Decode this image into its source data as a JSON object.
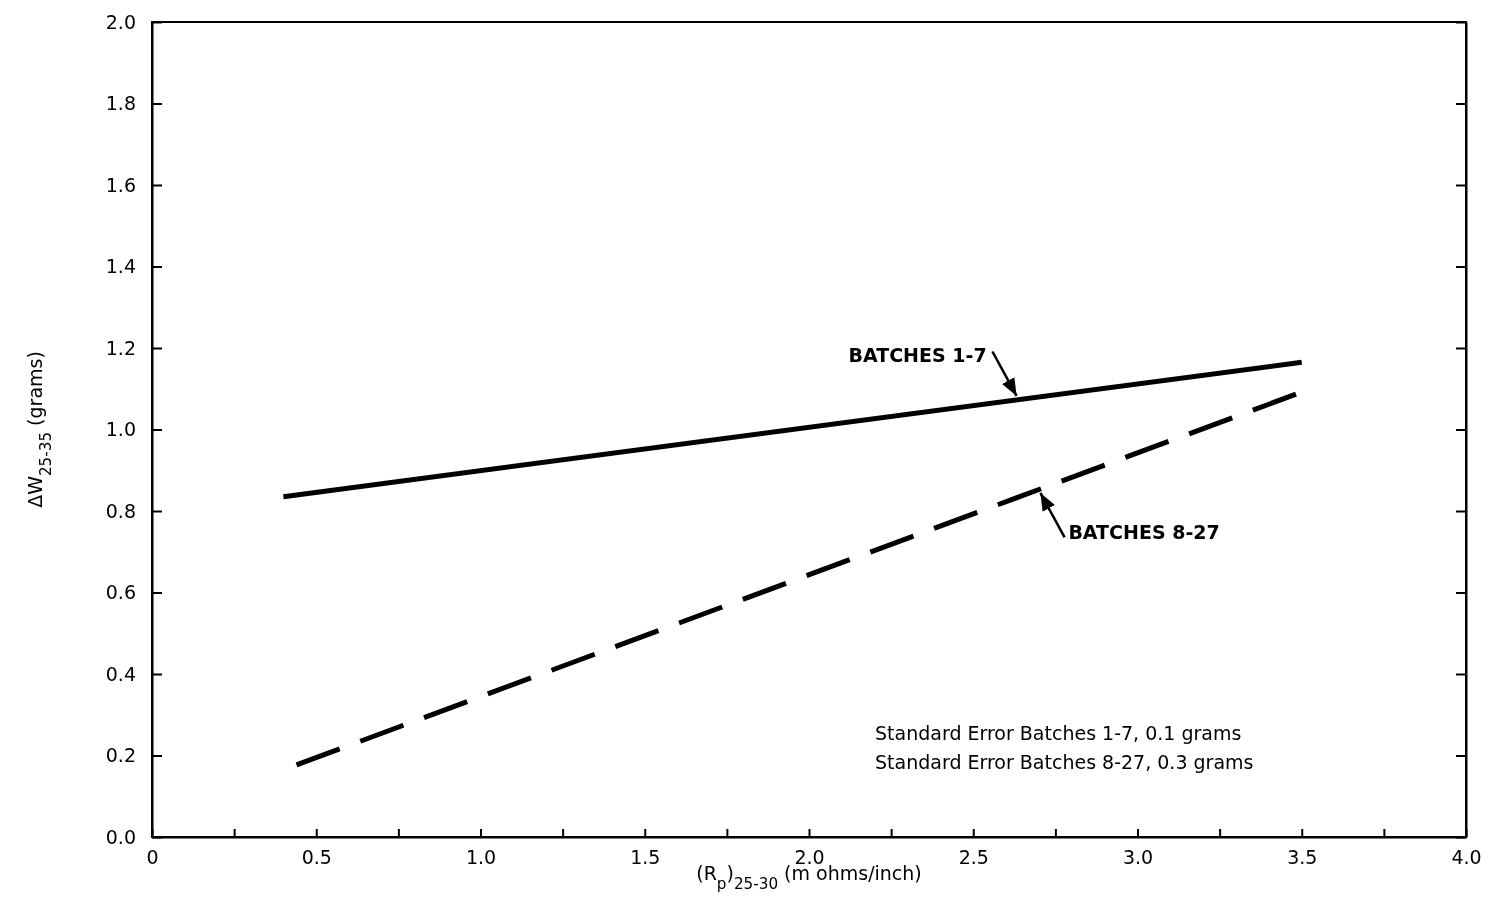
{
  "chart_data": {
    "type": "line",
    "xlabel": "(R$_{p}$)$_{25-30}$ (m ohms/inch)",
    "ylabel": "ΔW$_{25-35}$ (grams)",
    "xlim": [
      0,
      4
    ],
    "ylim": [
      0,
      2
    ],
    "xticks": [
      0,
      {
        "value": 0.25,
        "label": null
      },
      {
        "value": 0.5,
        "label": "0.5"
      },
      {
        "value": 0.75,
        "label": null
      },
      {
        "value": 1,
        "label": "1.0"
      },
      {
        "value": 1.25,
        "label": null
      },
      {
        "value": 1.5,
        "label": "1.5"
      },
      {
        "value": 1.75,
        "label": null
      },
      {
        "value": 2,
        "label": "2.0"
      },
      {
        "value": 2.25,
        "label": null
      },
      {
        "value": 2.5,
        "label": "2.5"
      },
      {
        "value": 2.75,
        "label": null
      },
      {
        "value": 3,
        "label": "3.0"
      },
      {
        "value": 3.25,
        "label": null
      },
      {
        "value": 3.5,
        "label": "3.5"
      },
      {
        "value": 3.75,
        "label": null
      },
      {
        "value": 4,
        "label": "4.0"
      }
    ],
    "yticks": [
      {
        "value": 0,
        "label": "0.0"
      },
      {
        "value": 0.2,
        "label": "0.2"
      },
      {
        "value": 0.4,
        "label": "0.4"
      },
      {
        "value": 0.6,
        "label": "0.6"
      },
      {
        "value": 0.8,
        "label": "0.8"
      },
      {
        "value": 1,
        "label": "1.0"
      },
      {
        "value": 1.2,
        "label": "1.2"
      },
      {
        "value": 1.4,
        "label": "1.4"
      },
      {
        "value": 1.6,
        "label": "1.6"
      },
      {
        "value": 1.8,
        "label": "1.8"
      },
      {
        "value": 2,
        "label": "2.0"
      }
    ],
    "series": [
      {
        "name": "BATCHES 1-7",
        "color": "#000000",
        "x": [
          0.4,
          3.5
        ],
        "values": [
          0.835,
          1.165
        ],
        "line_style": "solid"
      },
      {
        "name": "BATCHES 8-27",
        "color": "#000000",
        "x": [
          0.44,
          3.5
        ],
        "values": [
          0.177,
          1.092
        ],
        "line_style": "dashed"
      }
    ],
    "annotations": [
      "Standard Error Batches 1-7, 0.1 grams",
      "Standard Error Batches 8-27, 0.3 grams"
    ],
    "grid": false,
    "legend": false,
    "marker": "none"
  }
}
